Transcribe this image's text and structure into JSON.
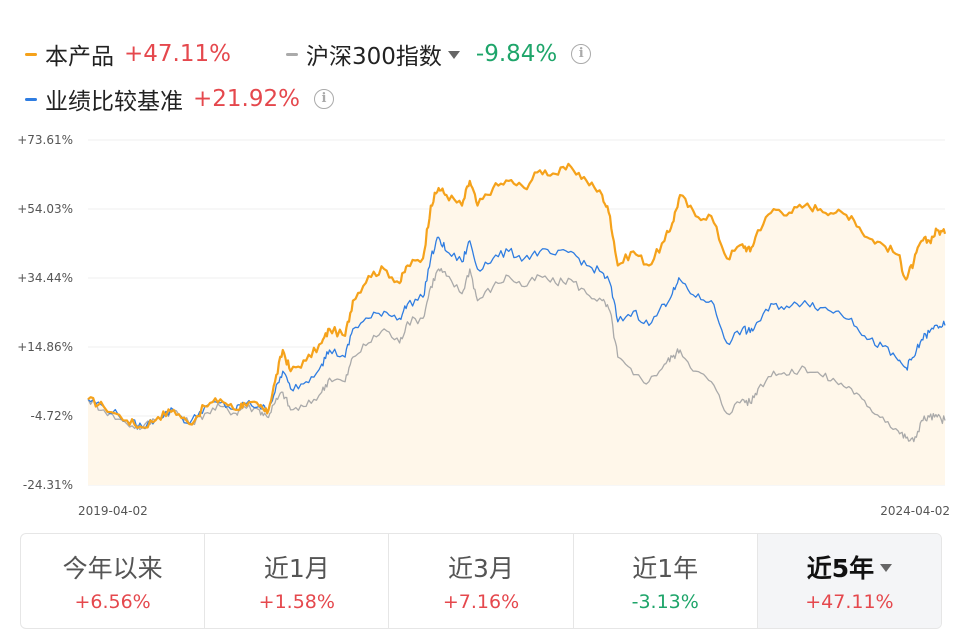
{
  "legend": {
    "product": {
      "name": "本产品",
      "value": "+47.11%",
      "color": "#f5a21b"
    },
    "index": {
      "name": "沪深300指数",
      "value": "-9.84%",
      "color": "#aaaaaa"
    },
    "benchmark": {
      "name": "业绩比较基准",
      "value": "+21.92%",
      "color": "#2f7de1"
    },
    "info_icon": "info-icon"
  },
  "chart_data": {
    "type": "line",
    "x_start": "2019-04-02",
    "x_end": "2024-04-02",
    "x_tick_labels": [
      "2019-04-02",
      "2024-04-02"
    ],
    "y_tick_labels": [
      "+73.61%",
      "+54.03%",
      "+34.44%",
      "+14.86%",
      "-4.72%",
      "-24.31%"
    ],
    "y_ticks": [
      73.61,
      54.03,
      34.44,
      14.86,
      -4.72,
      -24.31
    ],
    "ylim": [
      -24.31,
      73.61
    ],
    "grid": true,
    "series": [
      {
        "name": "本产品",
        "color": "#f5a21b",
        "area_fill": true,
        "points": [
          [
            0,
            0
          ],
          [
            2,
            -2
          ],
          [
            5,
            -6
          ],
          [
            7,
            -8
          ],
          [
            9,
            -5
          ],
          [
            11,
            -3
          ],
          [
            13,
            -7
          ],
          [
            15,
            -2
          ],
          [
            17,
            0
          ],
          [
            19,
            -3
          ],
          [
            20,
            -1
          ],
          [
            22,
            -2
          ],
          [
            23,
            -4
          ],
          [
            24,
            5
          ],
          [
            25,
            14
          ],
          [
            26,
            8
          ],
          [
            28,
            11
          ],
          [
            30,
            16
          ],
          [
            31,
            20
          ],
          [
            33,
            18
          ],
          [
            34,
            28
          ],
          [
            36,
            35
          ],
          [
            38,
            37
          ],
          [
            40,
            33
          ],
          [
            41,
            38
          ],
          [
            43,
            40
          ],
          [
            44,
            55
          ],
          [
            45,
            60
          ],
          [
            46,
            58
          ],
          [
            48,
            55
          ],
          [
            49,
            62
          ],
          [
            50,
            55
          ],
          [
            52,
            60
          ],
          [
            54,
            62
          ],
          [
            56,
            60
          ],
          [
            58,
            65
          ],
          [
            60,
            64
          ],
          [
            62,
            66
          ],
          [
            64,
            62
          ],
          [
            66,
            58
          ],
          [
            67,
            52
          ],
          [
            68,
            38
          ],
          [
            70,
            42
          ],
          [
            72,
            38
          ],
          [
            74,
            45
          ],
          [
            75,
            50
          ],
          [
            76,
            58
          ],
          [
            78,
            52
          ],
          [
            80,
            52
          ],
          [
            82,
            40
          ],
          [
            84,
            44
          ],
          [
            85,
            42
          ],
          [
            86,
            48
          ],
          [
            88,
            54
          ],
          [
            90,
            53
          ],
          [
            92,
            55
          ],
          [
            94,
            54
          ],
          [
            96,
            53
          ],
          [
            98,
            52
          ],
          [
            100,
            46
          ],
          [
            102,
            44
          ],
          [
            104,
            41
          ],
          [
            105,
            34
          ],
          [
            106,
            39
          ],
          [
            107,
            45
          ],
          [
            108,
            45
          ],
          [
            109,
            48
          ],
          [
            110,
            47
          ]
        ]
      },
      {
        "name": "沪深300指数",
        "color": "#aaaaaa",
        "area_fill": false,
        "points": [
          [
            0,
            0
          ],
          [
            2,
            -3
          ],
          [
            5,
            -7
          ],
          [
            7,
            -8
          ],
          [
            9,
            -5
          ],
          [
            11,
            -3
          ],
          [
            13,
            -7
          ],
          [
            15,
            -4
          ],
          [
            17,
            -2
          ],
          [
            19,
            -4
          ],
          [
            20,
            -2
          ],
          [
            22,
            -3
          ],
          [
            23,
            -5
          ],
          [
            24,
            -1
          ],
          [
            25,
            2
          ],
          [
            26,
            -3
          ],
          [
            28,
            -2
          ],
          [
            30,
            2
          ],
          [
            31,
            6
          ],
          [
            33,
            5
          ],
          [
            34,
            12
          ],
          [
            36,
            16
          ],
          [
            38,
            20
          ],
          [
            40,
            16
          ],
          [
            41,
            22
          ],
          [
            43,
            23
          ],
          [
            44,
            32
          ],
          [
            45,
            37
          ],
          [
            46,
            35
          ],
          [
            48,
            30
          ],
          [
            49,
            37
          ],
          [
            50,
            28
          ],
          [
            52,
            32
          ],
          [
            54,
            35
          ],
          [
            56,
            32
          ],
          [
            58,
            35
          ],
          [
            60,
            33
          ],
          [
            62,
            34
          ],
          [
            64,
            30
          ],
          [
            66,
            28
          ],
          [
            67,
            25
          ],
          [
            68,
            12
          ],
          [
            70,
            7
          ],
          [
            72,
            5
          ],
          [
            74,
            10
          ],
          [
            75,
            12
          ],
          [
            76,
            14
          ],
          [
            78,
            8
          ],
          [
            80,
            5
          ],
          [
            82,
            -4
          ],
          [
            84,
            0
          ],
          [
            85,
            -1
          ],
          [
            86,
            3
          ],
          [
            88,
            8
          ],
          [
            90,
            7
          ],
          [
            92,
            9
          ],
          [
            94,
            7
          ],
          [
            96,
            5
          ],
          [
            98,
            3
          ],
          [
            100,
            -2
          ],
          [
            102,
            -5
          ],
          [
            104,
            -9
          ],
          [
            105,
            -11
          ],
          [
            106,
            -12
          ],
          [
            107,
            -6
          ],
          [
            108,
            -5
          ],
          [
            109,
            -5
          ],
          [
            110,
            -6
          ]
        ]
      },
      {
        "name": "业绩比较基准",
        "color": "#2f7de1",
        "area_fill": false,
        "points": [
          [
            0,
            0
          ],
          [
            2,
            -2
          ],
          [
            5,
            -6
          ],
          [
            7,
            -8
          ],
          [
            9,
            -5
          ],
          [
            11,
            -3
          ],
          [
            13,
            -7
          ],
          [
            15,
            -2
          ],
          [
            17,
            -1
          ],
          [
            19,
            -3
          ],
          [
            20,
            -1
          ],
          [
            22,
            -2
          ],
          [
            23,
            -3
          ],
          [
            24,
            2
          ],
          [
            25,
            8
          ],
          [
            26,
            3
          ],
          [
            28,
            5
          ],
          [
            30,
            10
          ],
          [
            31,
            14
          ],
          [
            33,
            12
          ],
          [
            34,
            20
          ],
          [
            36,
            23
          ],
          [
            38,
            25
          ],
          [
            40,
            23
          ],
          [
            41,
            27
          ],
          [
            43,
            29
          ],
          [
            44,
            40
          ],
          [
            45,
            46
          ],
          [
            46,
            42
          ],
          [
            48,
            39
          ],
          [
            49,
            45
          ],
          [
            50,
            37
          ],
          [
            52,
            40
          ],
          [
            54,
            42
          ],
          [
            56,
            40
          ],
          [
            58,
            42
          ],
          [
            60,
            41
          ],
          [
            62,
            42
          ],
          [
            64,
            38
          ],
          [
            66,
            36
          ],
          [
            67,
            33
          ],
          [
            68,
            22
          ],
          [
            70,
            25
          ],
          [
            72,
            21
          ],
          [
            74,
            27
          ],
          [
            75,
            30
          ],
          [
            76,
            34
          ],
          [
            78,
            29
          ],
          [
            80,
            28
          ],
          [
            82,
            16
          ],
          [
            84,
            20
          ],
          [
            85,
            19
          ],
          [
            86,
            22
          ],
          [
            88,
            27
          ],
          [
            90,
            26
          ],
          [
            92,
            28
          ],
          [
            94,
            26
          ],
          [
            96,
            25
          ],
          [
            98,
            23
          ],
          [
            100,
            17
          ],
          [
            102,
            15
          ],
          [
            104,
            11
          ],
          [
            105,
            9
          ],
          [
            106,
            12
          ],
          [
            107,
            17
          ],
          [
            108,
            19
          ],
          [
            109,
            21
          ],
          [
            110,
            21
          ]
        ]
      }
    ]
  },
  "tabs": [
    {
      "label": "今年以来",
      "value": "+6.56%",
      "sign": "pos",
      "active": false
    },
    {
      "label": "近1月",
      "value": "+1.58%",
      "sign": "pos",
      "active": false
    },
    {
      "label": "近3月",
      "value": "+7.16%",
      "sign": "pos",
      "active": false
    },
    {
      "label": "近1年",
      "value": "-3.13%",
      "sign": "neg",
      "active": false
    },
    {
      "label": "近5年",
      "value": "+47.11%",
      "sign": "pos",
      "active": true,
      "has_dropdown": true
    }
  ]
}
